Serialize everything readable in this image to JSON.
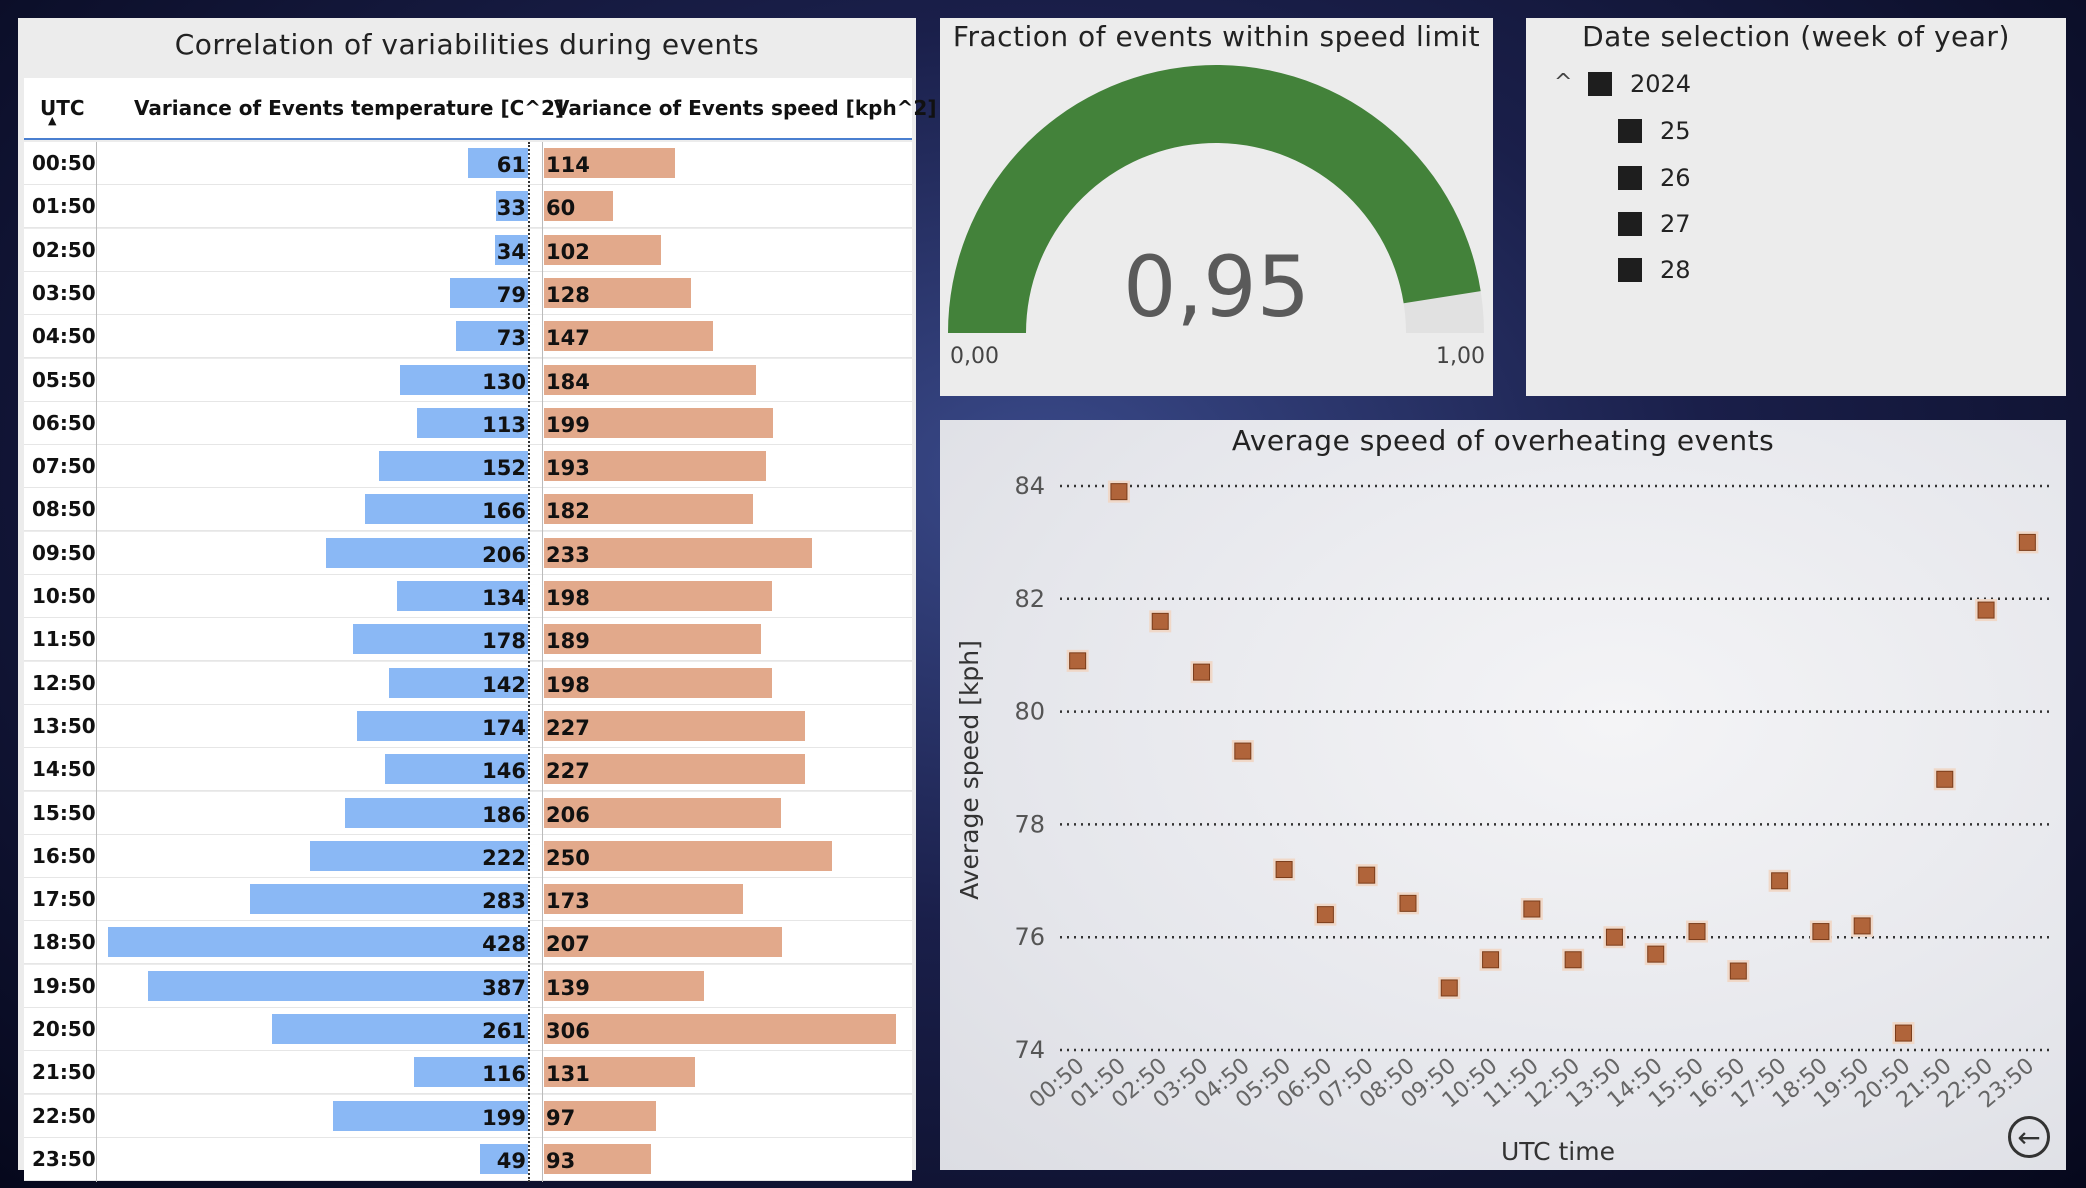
{
  "table": {
    "title": "Correlation of variabilities during events",
    "col_utc": "UTC",
    "col_temp": "Variance of Events temperature [C^2]",
    "col_speed": "Variance of Events speed [kph^2]",
    "sort_indicator": "▲",
    "rows": [
      {
        "utc": "00:50",
        "temp": 61,
        "speed": 114
      },
      {
        "utc": "01:50",
        "temp": 33,
        "speed": 60
      },
      {
        "utc": "02:50",
        "temp": 34,
        "speed": 102
      },
      {
        "utc": "03:50",
        "temp": 79,
        "speed": 128
      },
      {
        "utc": "04:50",
        "temp": 73,
        "speed": 147
      },
      {
        "utc": "05:50",
        "temp": 130,
        "speed": 184
      },
      {
        "utc": "06:50",
        "temp": 113,
        "speed": 199
      },
      {
        "utc": "07:50",
        "temp": 152,
        "speed": 193
      },
      {
        "utc": "08:50",
        "temp": 166,
        "speed": 182
      },
      {
        "utc": "09:50",
        "temp": 206,
        "speed": 233
      },
      {
        "utc": "10:50",
        "temp": 134,
        "speed": 198
      },
      {
        "utc": "11:50",
        "temp": 178,
        "speed": 189
      },
      {
        "utc": "12:50",
        "temp": 142,
        "speed": 198
      },
      {
        "utc": "13:50",
        "temp": 174,
        "speed": 227
      },
      {
        "utc": "14:50",
        "temp": 146,
        "speed": 227
      },
      {
        "utc": "15:50",
        "temp": 186,
        "speed": 206
      },
      {
        "utc": "16:50",
        "temp": 222,
        "speed": 250
      },
      {
        "utc": "17:50",
        "temp": 283,
        "speed": 173
      },
      {
        "utc": "18:50",
        "temp": 428,
        "speed": 207
      },
      {
        "utc": "19:50",
        "temp": 387,
        "speed": 139
      },
      {
        "utc": "20:50",
        "temp": 261,
        "speed": 306
      },
      {
        "utc": "21:50",
        "temp": 116,
        "speed": 131
      },
      {
        "utc": "22:50",
        "temp": 199,
        "speed": 97
      },
      {
        "utc": "23:50",
        "temp": 49,
        "speed": 93
      }
    ],
    "colors": {
      "temp": "#8ab8f5",
      "speed": "#e2a98b"
    }
  },
  "gauge": {
    "title": "Fraction of events within speed limit",
    "value": 0.95,
    "value_label": "0,95",
    "min_label": "0,00",
    "max_label": "1,00",
    "min": 0,
    "max": 1,
    "fill_color": "#43823a",
    "track_color": "#e1e1e1"
  },
  "slicer": {
    "title": "Date selection (week of year)",
    "caret": "^",
    "year": "2024",
    "weeks": [
      "25",
      "26",
      "27",
      "28"
    ]
  },
  "chart_data": {
    "type": "scatter",
    "title": "Average speed of overheating events",
    "xlabel": "UTC time",
    "ylabel": "Average speed [kph]",
    "ylim": [
      74,
      84
    ],
    "yticks": [
      74,
      76,
      78,
      80,
      82,
      84
    ],
    "grid": "horizontal dotted",
    "marker_color": "#b0643a",
    "x": [
      "00:50",
      "01:50",
      "02:50",
      "03:50",
      "04:50",
      "05:50",
      "06:50",
      "07:50",
      "08:50",
      "09:50",
      "10:50",
      "11:50",
      "12:50",
      "13:50",
      "14:50",
      "15:50",
      "16:50",
      "17:50",
      "18:50",
      "19:50",
      "20:50",
      "21:50",
      "22:50",
      "23:50"
    ],
    "y": [
      80.9,
      83.9,
      81.6,
      80.7,
      79.3,
      77.2,
      76.4,
      77.1,
      76.6,
      75.1,
      75.6,
      76.5,
      75.6,
      76.0,
      75.7,
      76.1,
      75.4,
      77.0,
      76.1,
      76.2,
      74.3,
      78.8,
      81.8,
      83.0
    ]
  }
}
